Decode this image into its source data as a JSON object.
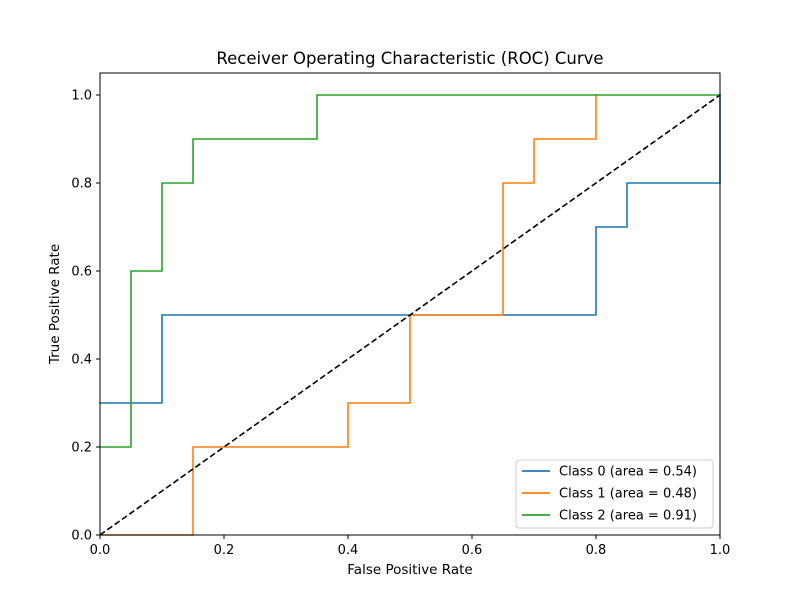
{
  "chart_data": {
    "type": "line",
    "title": "Receiver Operating Characteristic (ROC) Curve",
    "xlabel": "False Positive Rate",
    "ylabel": "True Positive Rate",
    "xlim": [
      0.0,
      1.0
    ],
    "ylim": [
      0.0,
      1.05
    ],
    "xticks": [
      0.0,
      0.2,
      0.4,
      0.6,
      0.8,
      1.0
    ],
    "yticks": [
      0.0,
      0.2,
      0.4,
      0.6,
      0.8,
      1.0
    ],
    "xtick_labels": [
      "0.0",
      "0.2",
      "0.4",
      "0.6",
      "0.8",
      "1.0"
    ],
    "ytick_labels": [
      "0.0",
      "0.2",
      "0.4",
      "0.6",
      "0.8",
      "1.0"
    ],
    "grid": false,
    "legend_position": "bottom-right",
    "series": [
      {
        "name": "Class 0 (area = 0.54)",
        "color": "#1f77b4",
        "style": "step",
        "x": [
          0.0,
          0.1,
          0.1,
          0.8,
          0.8,
          0.85,
          0.85,
          1.0,
          1.0
        ],
        "y": [
          0.3,
          0.3,
          0.5,
          0.5,
          0.7,
          0.7,
          0.8,
          0.8,
          1.0
        ]
      },
      {
        "name": "Class 1 (area = 0.48)",
        "color": "#ff7f0e",
        "style": "step",
        "x": [
          0.0,
          0.15,
          0.15,
          0.4,
          0.4,
          0.5,
          0.5,
          0.65,
          0.65,
          0.7,
          0.7,
          0.8,
          0.8
        ],
        "y": [
          0.0,
          0.0,
          0.2,
          0.2,
          0.3,
          0.3,
          0.5,
          0.5,
          0.8,
          0.8,
          0.9,
          0.9,
          1.0
        ]
      },
      {
        "name": "Class 2 (area = 0.91)",
        "color": "#2ca02c",
        "style": "step",
        "x": [
          0.0,
          0.05,
          0.05,
          0.1,
          0.1,
          0.15,
          0.15,
          0.35,
          0.35,
          1.0
        ],
        "y": [
          0.2,
          0.2,
          0.6,
          0.6,
          0.8,
          0.8,
          0.9,
          0.9,
          1.0,
          1.0
        ]
      }
    ],
    "reference_line": {
      "x": [
        0.0,
        1.0
      ],
      "y": [
        0.0,
        1.0
      ],
      "color": "#000000",
      "style": "dashed"
    }
  }
}
